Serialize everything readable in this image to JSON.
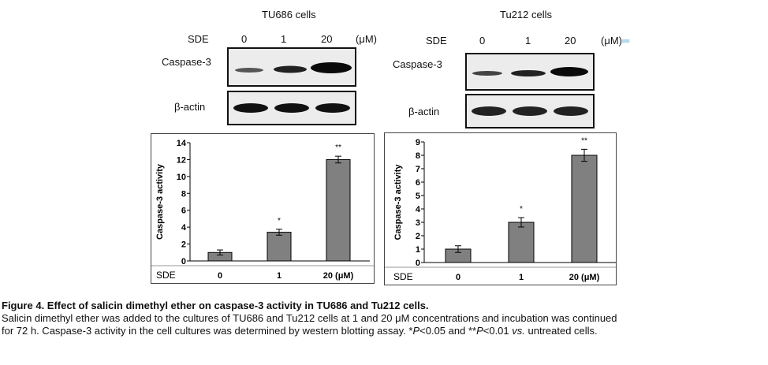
{
  "left_panel": {
    "title": "TU686 cells",
    "sde_label": "SDE",
    "doses": [
      "0",
      "1",
      "20"
    ],
    "unit": "(μM)",
    "blot1_label": "Caspase-3",
    "blot2_label": "β-actin"
  },
  "right_panel": {
    "title": "Tu212 cells",
    "sde_label": "SDE",
    "doses": [
      "0",
      "1",
      "20"
    ],
    "unit": "(μM)",
    "unit_suffix": "═",
    "blot1_label": "Caspase-3",
    "blot2_label": "β-actin"
  },
  "chart_data": [
    {
      "type": "bar",
      "ylabel": "Caspase-3 activity",
      "xlabel": "SDE",
      "categories": [
        "0",
        "1",
        "20 (μM)"
      ],
      "values": [
        1.0,
        3.4,
        12.0
      ],
      "errors": [
        0.3,
        0.35,
        0.4
      ],
      "significance": [
        "",
        "*",
        "**"
      ],
      "ylim": [
        0,
        14
      ],
      "yticks": [
        0,
        2,
        4,
        6,
        8,
        10,
        12,
        14
      ],
      "bar_color": "#808080"
    },
    {
      "type": "bar",
      "ylabel": "Caspase-3 activity",
      "xlabel": "SDE",
      "categories": [
        "0",
        "1",
        "20 (μM)"
      ],
      "values": [
        1.0,
        3.0,
        8.0
      ],
      "errors": [
        0.25,
        0.35,
        0.45
      ],
      "significance": [
        "",
        "*",
        "**"
      ],
      "ylim": [
        0,
        9
      ],
      "yticks": [
        0,
        1,
        2,
        3,
        4,
        5,
        6,
        7,
        8,
        9
      ],
      "bar_color": "#808080"
    }
  ],
  "caption": {
    "title": "Figure 4. Effect of salicin dimethyl ether on caspase-3 activity in TU686 and Tu212 cells.",
    "line1": "Salicin dimethyl ether was added to the cultures of TU686 and Tu212 cells at 1 and 20 μM concentrations and incubation was continued",
    "line2_a": "for 72 h. Caspase-3 activity in the cell cultures was determined by western blotting assay. *",
    "p1": "P",
    "line2_b": "<0.05 and **",
    "p2": "P",
    "line2_c": "<0.01 ",
    "vs": "vs.",
    "line2_d": " untreated cells."
  }
}
